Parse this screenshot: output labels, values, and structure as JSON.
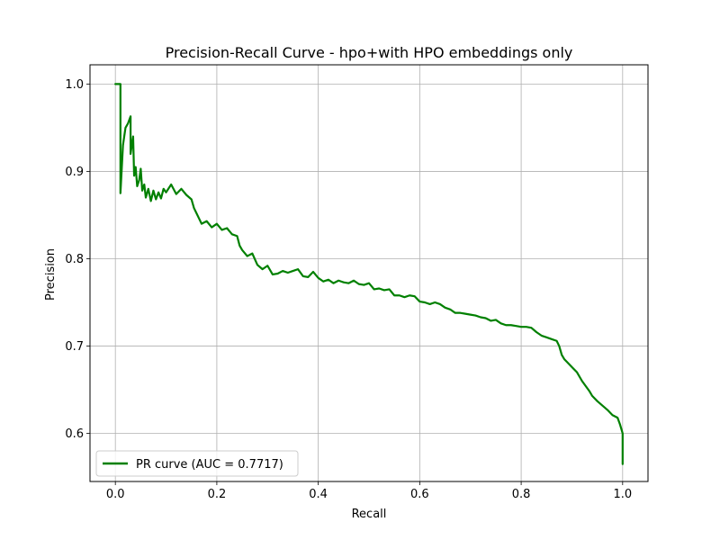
{
  "chart_data": {
    "type": "line",
    "title": "Precision-Recall Curve - hpo+with HPO embeddings only",
    "xlabel": "Recall",
    "ylabel": "Precision",
    "xlim": [
      -0.05,
      1.05
    ],
    "ylim": [
      0.545,
      1.022
    ],
    "grid": true,
    "legend_position": "lower-left",
    "x_ticks": [
      0.0,
      0.2,
      0.4,
      0.6,
      0.8,
      1.0
    ],
    "y_ticks": [
      0.6,
      0.7,
      0.8,
      0.9,
      1.0
    ],
    "x_tick_labels": [
      "0.0",
      "0.2",
      "0.4",
      "0.6",
      "0.8",
      "1.0"
    ],
    "y_tick_labels": [
      "0.6",
      "0.7",
      "0.8",
      "0.9",
      "1.0"
    ],
    "series": [
      {
        "name": "PR curve (AUC = 0.7717)",
        "color": "#008000",
        "x": [
          0.0,
          0.003,
          0.01,
          0.01,
          0.015,
          0.02,
          0.025,
          0.03,
          0.03,
          0.035,
          0.037,
          0.04,
          0.043,
          0.047,
          0.05,
          0.053,
          0.057,
          0.06,
          0.065,
          0.07,
          0.075,
          0.08,
          0.085,
          0.09,
          0.095,
          0.1,
          0.11,
          0.12,
          0.13,
          0.14,
          0.15,
          0.155,
          0.16,
          0.165,
          0.17,
          0.18,
          0.19,
          0.2,
          0.21,
          0.22,
          0.23,
          0.24,
          0.245,
          0.25,
          0.26,
          0.27,
          0.28,
          0.29,
          0.3,
          0.31,
          0.32,
          0.33,
          0.34,
          0.35,
          0.36,
          0.37,
          0.38,
          0.39,
          0.4,
          0.41,
          0.42,
          0.43,
          0.44,
          0.45,
          0.46,
          0.47,
          0.48,
          0.49,
          0.5,
          0.51,
          0.52,
          0.53,
          0.54,
          0.55,
          0.56,
          0.57,
          0.58,
          0.59,
          0.6,
          0.61,
          0.62,
          0.63,
          0.64,
          0.65,
          0.66,
          0.67,
          0.68,
          0.69,
          0.7,
          0.71,
          0.72,
          0.73,
          0.74,
          0.75,
          0.76,
          0.77,
          0.78,
          0.79,
          0.8,
          0.81,
          0.82,
          0.83,
          0.84,
          0.85,
          0.86,
          0.87,
          0.875,
          0.88,
          0.885,
          0.89,
          0.9,
          0.91,
          0.92,
          0.93,
          0.935,
          0.94,
          0.95,
          0.96,
          0.97,
          0.98,
          0.99,
          0.995,
          1.0,
          1.0
        ],
        "y": [
          1.0,
          1.0,
          1.0,
          0.875,
          0.93,
          0.95,
          0.955,
          0.963,
          0.92,
          0.94,
          0.895,
          0.905,
          0.883,
          0.89,
          0.903,
          0.878,
          0.885,
          0.87,
          0.88,
          0.866,
          0.878,
          0.868,
          0.876,
          0.869,
          0.88,
          0.876,
          0.885,
          0.874,
          0.88,
          0.873,
          0.868,
          0.858,
          0.852,
          0.846,
          0.84,
          0.843,
          0.836,
          0.84,
          0.833,
          0.835,
          0.828,
          0.826,
          0.815,
          0.81,
          0.803,
          0.806,
          0.793,
          0.788,
          0.792,
          0.782,
          0.783,
          0.786,
          0.784,
          0.786,
          0.788,
          0.78,
          0.779,
          0.785,
          0.778,
          0.774,
          0.776,
          0.772,
          0.775,
          0.773,
          0.772,
          0.775,
          0.771,
          0.77,
          0.772,
          0.765,
          0.766,
          0.764,
          0.765,
          0.758,
          0.758,
          0.756,
          0.758,
          0.757,
          0.751,
          0.75,
          0.748,
          0.75,
          0.748,
          0.744,
          0.742,
          0.738,
          0.738,
          0.737,
          0.736,
          0.735,
          0.733,
          0.732,
          0.729,
          0.73,
          0.726,
          0.724,
          0.724,
          0.723,
          0.722,
          0.722,
          0.721,
          0.716,
          0.712,
          0.71,
          0.708,
          0.706,
          0.7,
          0.69,
          0.685,
          0.682,
          0.676,
          0.67,
          0.66,
          0.652,
          0.648,
          0.643,
          0.637,
          0.632,
          0.627,
          0.621,
          0.618,
          0.61,
          0.6,
          0.565
        ]
      }
    ]
  }
}
